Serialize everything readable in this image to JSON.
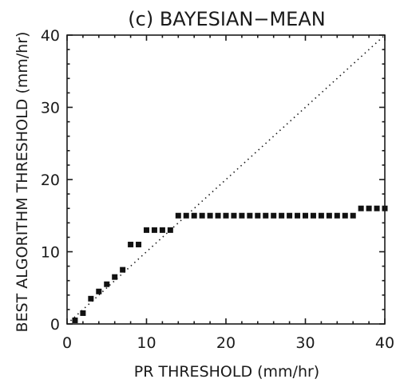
{
  "chart_data": {
    "type": "scatter",
    "title": "(c) BAYESIAN−MEAN",
    "xlabel": "PR THRESHOLD (mm/hr)",
    "ylabel": "BEST ALGORITHM THRESHOLD (mm/hr)",
    "xlim": [
      0,
      40
    ],
    "ylim": [
      0,
      40
    ],
    "x_ticks": [
      "0",
      "10",
      "20",
      "30",
      "40"
    ],
    "y_ticks": [
      "0",
      "10",
      "20",
      "30",
      "40"
    ],
    "x_tick_values": [
      0,
      10,
      20,
      30,
      40
    ],
    "y_tick_values": [
      0,
      10,
      20,
      30,
      40
    ],
    "reference_line": {
      "type": "1:1",
      "style": "dotted"
    },
    "marker_color": "#111111",
    "grid": false,
    "points": [
      {
        "x": 1,
        "y": 0.5
      },
      {
        "x": 2,
        "y": 1.5
      },
      {
        "x": 3,
        "y": 3.5
      },
      {
        "x": 4,
        "y": 4.5
      },
      {
        "x": 5,
        "y": 5.5
      },
      {
        "x": 6,
        "y": 6.5
      },
      {
        "x": 7,
        "y": 7.5
      },
      {
        "x": 8,
        "y": 11
      },
      {
        "x": 9,
        "y": 11
      },
      {
        "x": 10,
        "y": 13
      },
      {
        "x": 11,
        "y": 13
      },
      {
        "x": 12,
        "y": 13
      },
      {
        "x": 13,
        "y": 13
      },
      {
        "x": 14,
        "y": 15
      },
      {
        "x": 15,
        "y": 15
      },
      {
        "x": 16,
        "y": 15
      },
      {
        "x": 17,
        "y": 15
      },
      {
        "x": 18,
        "y": 15
      },
      {
        "x": 19,
        "y": 15
      },
      {
        "x": 20,
        "y": 15
      },
      {
        "x": 21,
        "y": 15
      },
      {
        "x": 22,
        "y": 15
      },
      {
        "x": 23,
        "y": 15
      },
      {
        "x": 24,
        "y": 15
      },
      {
        "x": 25,
        "y": 15
      },
      {
        "x": 26,
        "y": 15
      },
      {
        "x": 27,
        "y": 15
      },
      {
        "x": 28,
        "y": 15
      },
      {
        "x": 29,
        "y": 15
      },
      {
        "x": 30,
        "y": 15
      },
      {
        "x": 31,
        "y": 15
      },
      {
        "x": 32,
        "y": 15
      },
      {
        "x": 33,
        "y": 15
      },
      {
        "x": 34,
        "y": 15
      },
      {
        "x": 35,
        "y": 15
      },
      {
        "x": 36,
        "y": 15
      },
      {
        "x": 37,
        "y": 16
      },
      {
        "x": 38,
        "y": 16
      },
      {
        "x": 39,
        "y": 16
      },
      {
        "x": 40,
        "y": 16
      }
    ]
  }
}
